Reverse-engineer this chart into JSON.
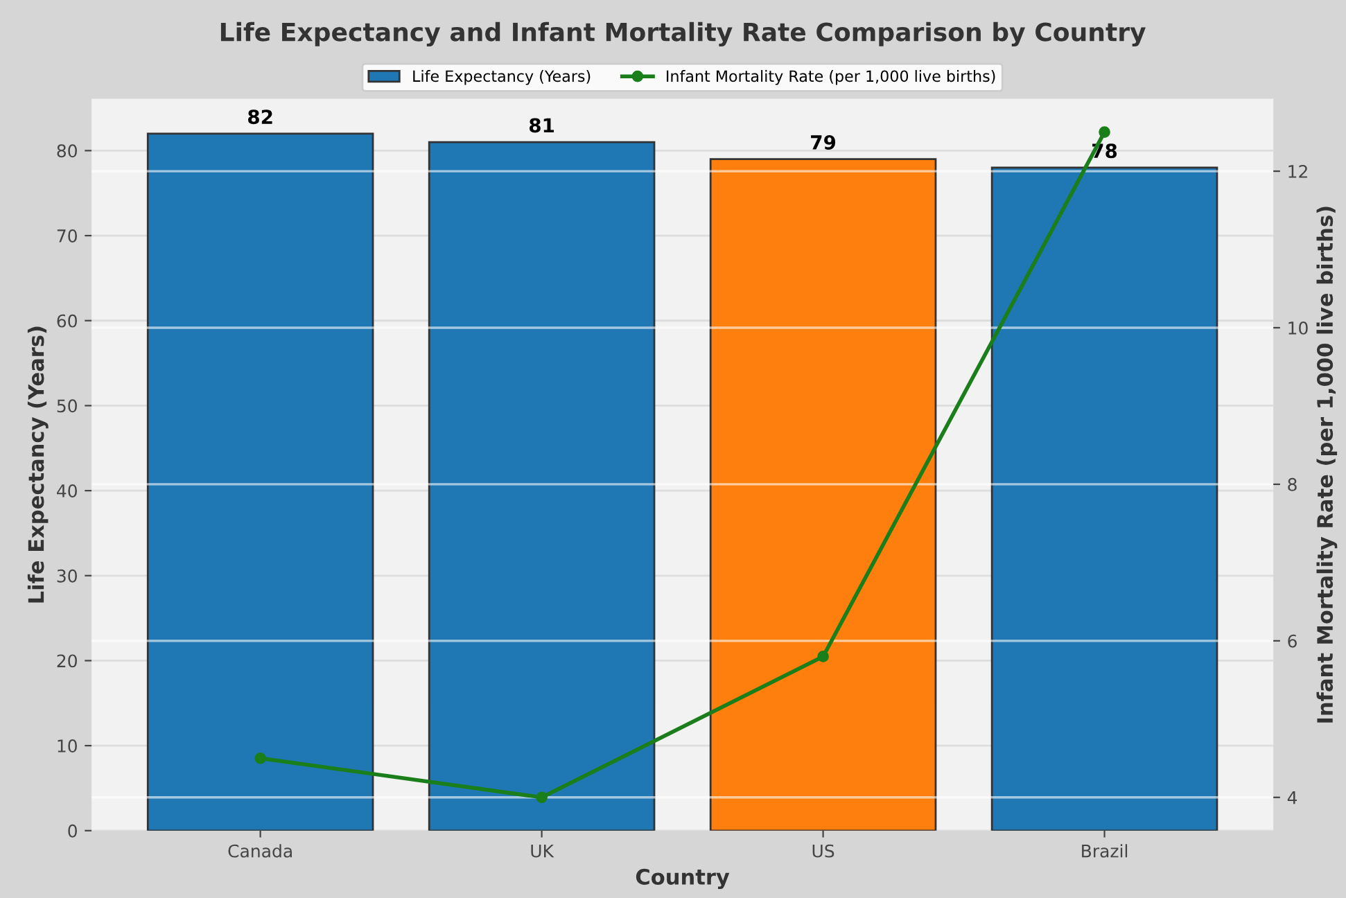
{
  "chart_data": {
    "type": "bar",
    "title": "Life Expectancy and Infant Mortality Rate Comparison by Country",
    "xlabel": "Country",
    "ylabel": "Life Expectancy (Years)",
    "y2label": "Infant Mortality Rate (per 1,000 live births)",
    "categories": [
      "Canada",
      "UK",
      "US",
      "Brazil"
    ],
    "series": [
      {
        "name": "Life Expectancy (Years)",
        "colors": [
          "#1f77b4",
          "#1f77b4",
          "#ff7f0e",
          "#1f77b4"
        ],
        "values": [
          82,
          81,
          79,
          78
        ],
        "value_labels": [
          "82",
          "81",
          "79",
          "78"
        ]
      },
      {
        "name": "Infant Mortality Rate (per 1,000 live births)",
        "type": "line",
        "axis": "y2",
        "color": "#1a7f1a",
        "marker": "circle",
        "line_style": "solid",
        "values": [
          4.5,
          4.0,
          5.8,
          12.5
        ]
      }
    ],
    "ylim": [
      0,
      86.1
    ],
    "yticks": [
      0,
      10,
      20,
      30,
      40,
      50,
      60,
      70,
      80
    ],
    "y2lim": [
      3.575,
      12.925
    ],
    "y2ticks": [
      4,
      6,
      8,
      10,
      12
    ],
    "grid": true,
    "legend": "top"
  }
}
